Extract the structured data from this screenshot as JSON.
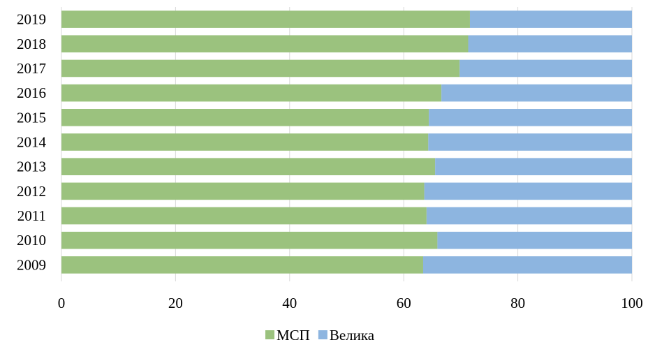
{
  "chart_data": {
    "type": "bar",
    "orientation": "horizontal",
    "stacked": true,
    "categories": [
      "2019",
      "2018",
      "2017",
      "2016",
      "2015",
      "2014",
      "2013",
      "2012",
      "2011",
      "2010",
      "2009"
    ],
    "series": [
      {
        "name": "МСП",
        "color": "#9bc27e",
        "values": [
          71.6,
          71.3,
          69.8,
          66.6,
          64.4,
          64.3,
          65.5,
          63.6,
          64.0,
          65.9,
          63.4
        ]
      },
      {
        "name": "Велика",
        "color": "#8db5e0",
        "values": [
          28.4,
          28.7,
          30.2,
          33.4,
          35.6,
          35.7,
          34.5,
          36.4,
          36.0,
          34.1,
          36.6
        ]
      }
    ],
    "xlim": [
      0,
      100
    ],
    "xticks": [
      "0",
      "20",
      "40",
      "60",
      "80",
      "100"
    ],
    "grid": true,
    "legend": "bottom"
  }
}
